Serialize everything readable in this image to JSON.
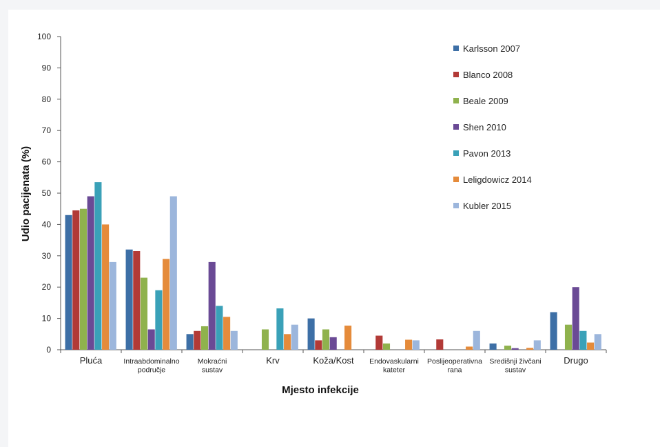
{
  "chart_data": {
    "type": "bar",
    "xlabel": "Mjesto infekcije",
    "ylabel": "Udio pacijenata (%)",
    "ylim": [
      0,
      100
    ],
    "yticks": [
      "0",
      "10",
      "20",
      "30",
      "40",
      "50",
      "60",
      "70",
      "80",
      "90",
      "100"
    ],
    "grid": false,
    "legend_position": "top-right",
    "categories": [
      [
        "Pluća"
      ],
      [
        "Intraabdominalno",
        "područje"
      ],
      [
        "Mokraćni",
        "sustav"
      ],
      [
        "Krv"
      ],
      [
        "Koža/Kost"
      ],
      [
        "Endovaskularni",
        "kateter"
      ],
      [
        "Poslijeoperativna",
        "rana"
      ],
      [
        "Središnji živčani",
        "sustav"
      ],
      [
        "Drugo"
      ]
    ],
    "series": [
      {
        "name": "Karlsson 2007",
        "color": "#3d6fa6",
        "values": [
          43,
          32,
          5,
          null,
          10,
          null,
          null,
          2,
          12
        ]
      },
      {
        "name": "Blanco 2008",
        "color": "#b23a37",
        "values": [
          44.5,
          31.5,
          6,
          null,
          3,
          4.5,
          3.3,
          null,
          null
        ]
      },
      {
        "name": "Beale 2009",
        "color": "#8fb24d",
        "values": [
          45,
          23,
          7.5,
          6.5,
          6.5,
          2,
          null,
          1.3,
          8
        ]
      },
      {
        "name": "Shen 2010",
        "color": "#6a4a95",
        "values": [
          49,
          6.5,
          28,
          null,
          4,
          null,
          null,
          0.5,
          20
        ]
      },
      {
        "name": "Pavon 2013",
        "color": "#3aa1b8",
        "values": [
          53.5,
          19,
          14,
          13.2,
          null,
          null,
          null,
          null,
          6
        ]
      },
      {
        "name": "Leligdowicz 2014",
        "color": "#e58b3b",
        "values": [
          40,
          29,
          10.5,
          5,
          7.7,
          3.2,
          1,
          0.6,
          2.3
        ]
      },
      {
        "name": "Kubler 2015",
        "color": "#9cb6dc",
        "values": [
          28,
          49,
          6,
          8,
          null,
          3,
          6,
          3,
          5
        ]
      }
    ]
  }
}
